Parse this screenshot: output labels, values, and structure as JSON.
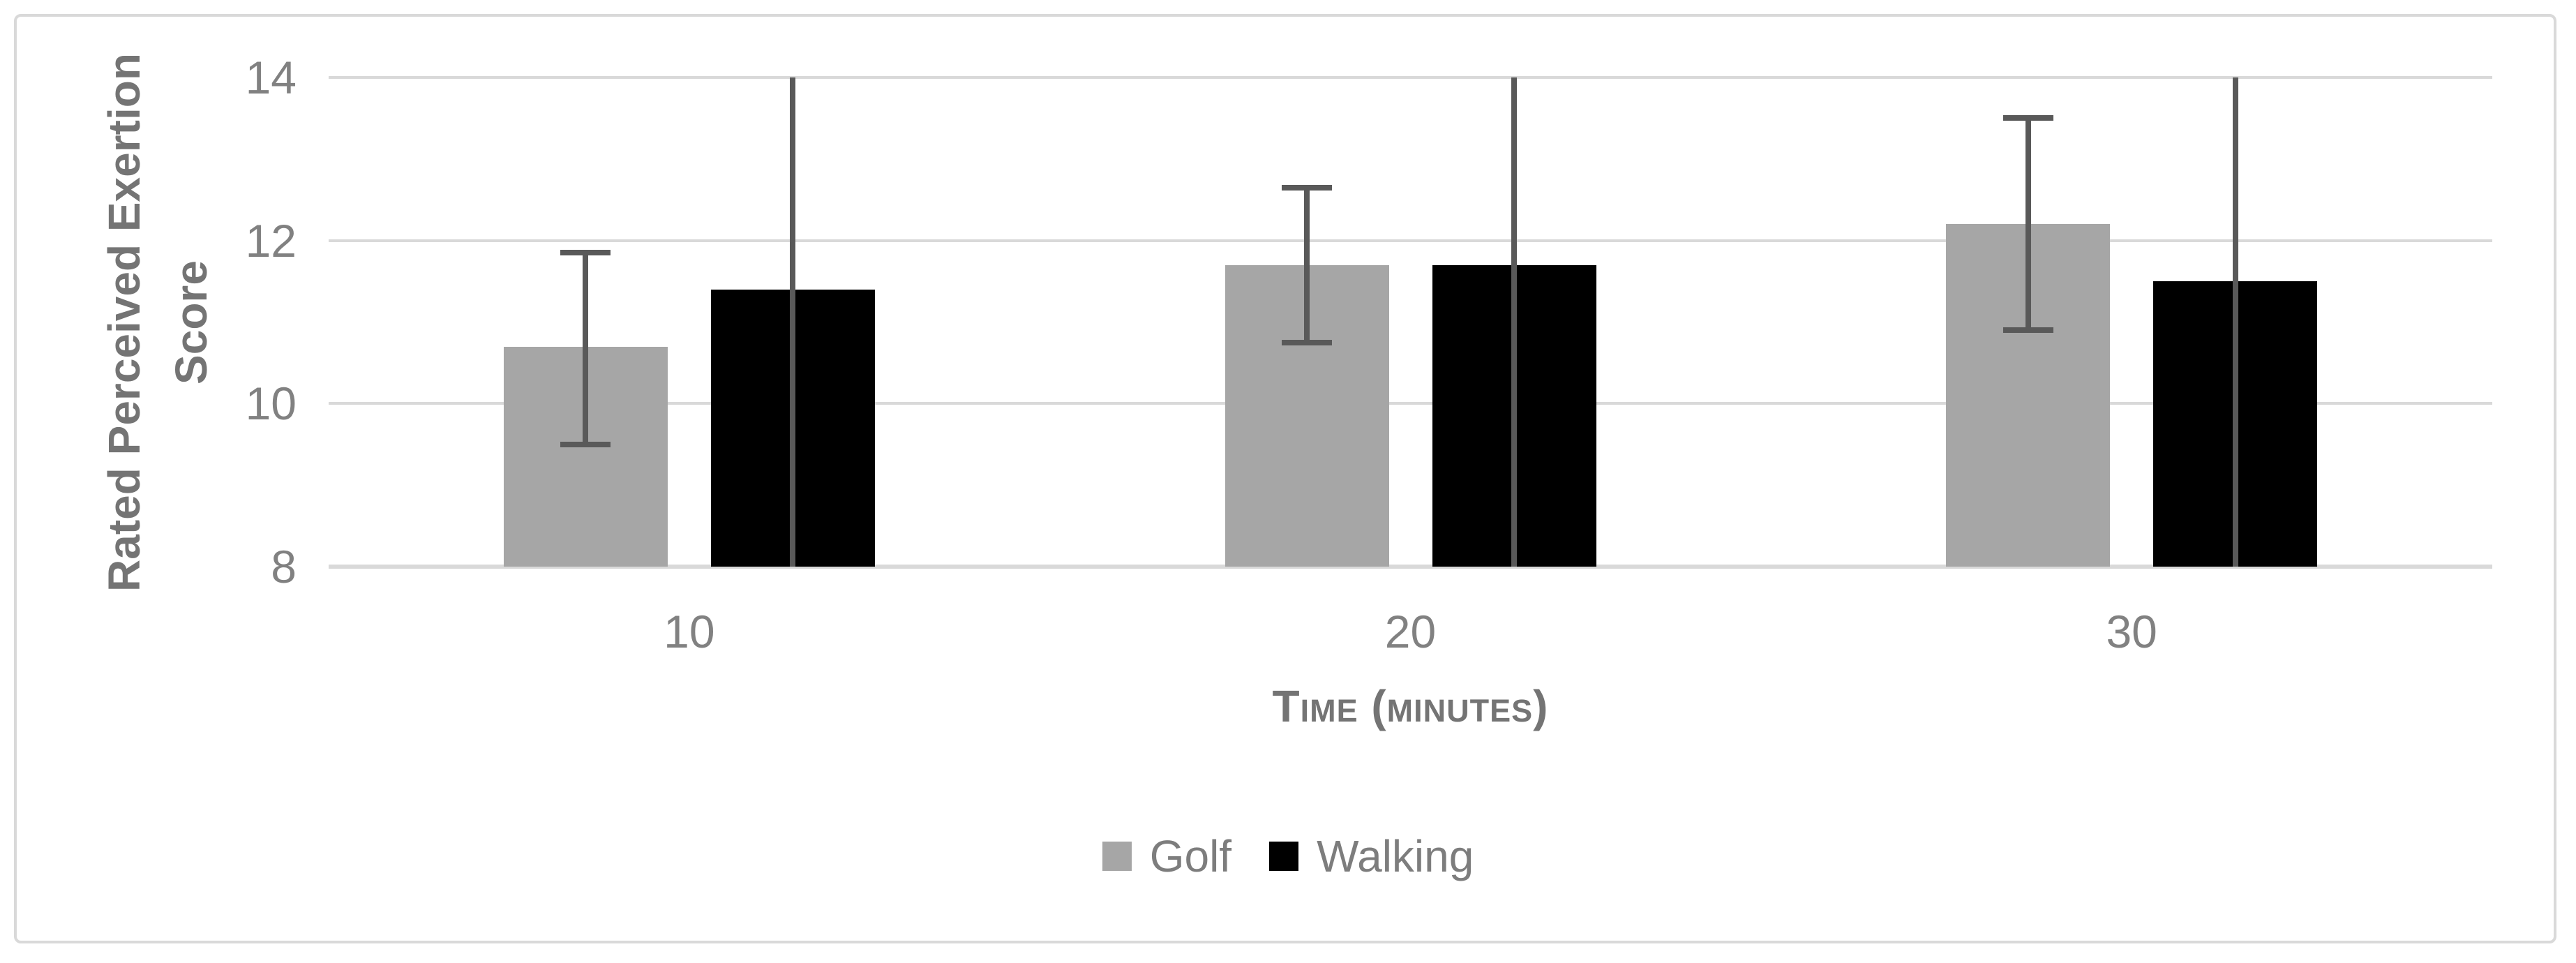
{
  "figure": {
    "background": "#ffffff",
    "border_color": "#D9D9D9"
  },
  "chart_data": {
    "type": "bar",
    "title": "",
    "categories": [
      "10",
      "20",
      "30"
    ],
    "series": [
      {
        "name": "Golf",
        "color": "#A6A6A6",
        "values": [
          10.7,
          11.7,
          12.2
        ],
        "error_upper": [
          11.85,
          12.65,
          13.5
        ],
        "error_lower": [
          9.5,
          10.75,
          10.9
        ],
        "error_caps": true
      },
      {
        "name": "Walking",
        "color": "#000000",
        "values": [
          11.4,
          11.7,
          11.5
        ],
        "error_upper": [
          14,
          14,
          14
        ],
        "error_lower": [
          8,
          8,
          8
        ],
        "error_caps": false,
        "error_clipped_to_plot": true
      }
    ],
    "xlabel": "Time (minutes)",
    "ylabel_line1": "Rated Perceived Exertion",
    "ylabel_line2": "Score",
    "ylim": [
      8,
      14
    ],
    "yticks": [
      14,
      12,
      10,
      8
    ],
    "grid": true,
    "legend_position": "bottom-center",
    "colors": {
      "gridline": "#D9D9D9",
      "error_bar": "#595959",
      "tick_text": "#818181",
      "axis_title_text": "#747474",
      "legend_text": "#7D7D7D"
    }
  }
}
